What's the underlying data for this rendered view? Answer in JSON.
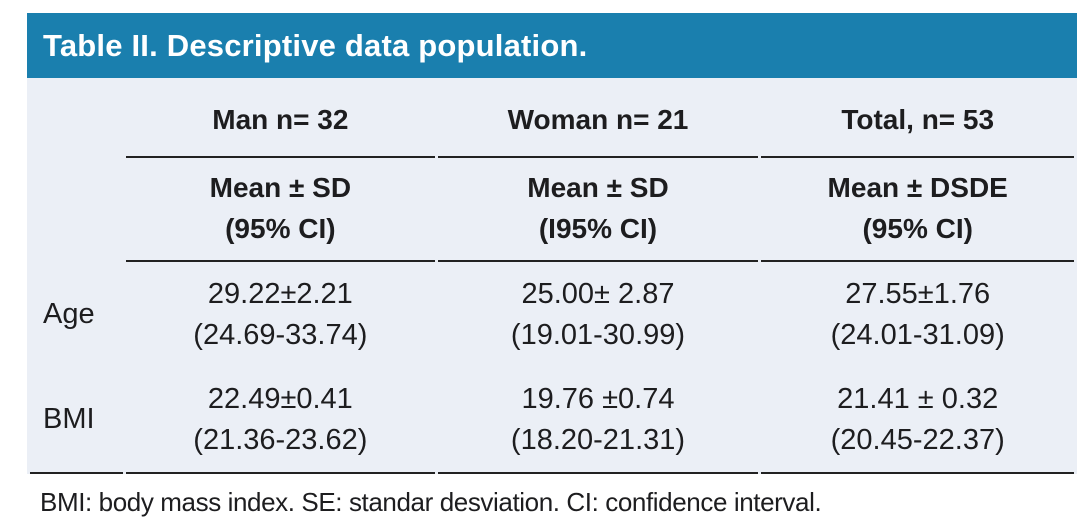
{
  "title": "Table II. Descriptive data population.",
  "colors": {
    "accent": "#1a7fae",
    "table_bg": "#ebeff6",
    "rule": "#222222",
    "title_text": "#ffffff",
    "body_text": "#1d1d1f"
  },
  "table": {
    "group_headers": [
      "Man n= 32",
      "Woman n= 21",
      "Total, n= 53"
    ],
    "sub_headers": [
      {
        "line1": "Mean ± SD",
        "line2": "(95% CI)"
      },
      {
        "line1": "Mean ± SD",
        "line2": "(I95% CI)"
      },
      {
        "line1": "Mean ± DSDE",
        "line2": "(95% CI)"
      }
    ],
    "rows": [
      {
        "label": "Age",
        "cells": [
          {
            "line1": "29.22±2.21",
            "line2": "(24.69-33.74)"
          },
          {
            "line1": "25.00± 2.87",
            "line2": "(19.01-30.99)"
          },
          {
            "line1": "27.55±1.76",
            "line2": "(24.01-31.09)"
          }
        ]
      },
      {
        "label": "BMI",
        "cells": [
          {
            "line1": "22.49±0.41",
            "line2": "(21.36-23.62)"
          },
          {
            "line1": "19.76 ±0.74",
            "line2": "(18.20-21.31)"
          },
          {
            "line1": "21.41 ± 0.32",
            "line2": "(20.45-22.37)"
          }
        ]
      }
    ]
  },
  "footnote": "BMI: body mass index. SE: standar desviation. CI: confidence interval."
}
